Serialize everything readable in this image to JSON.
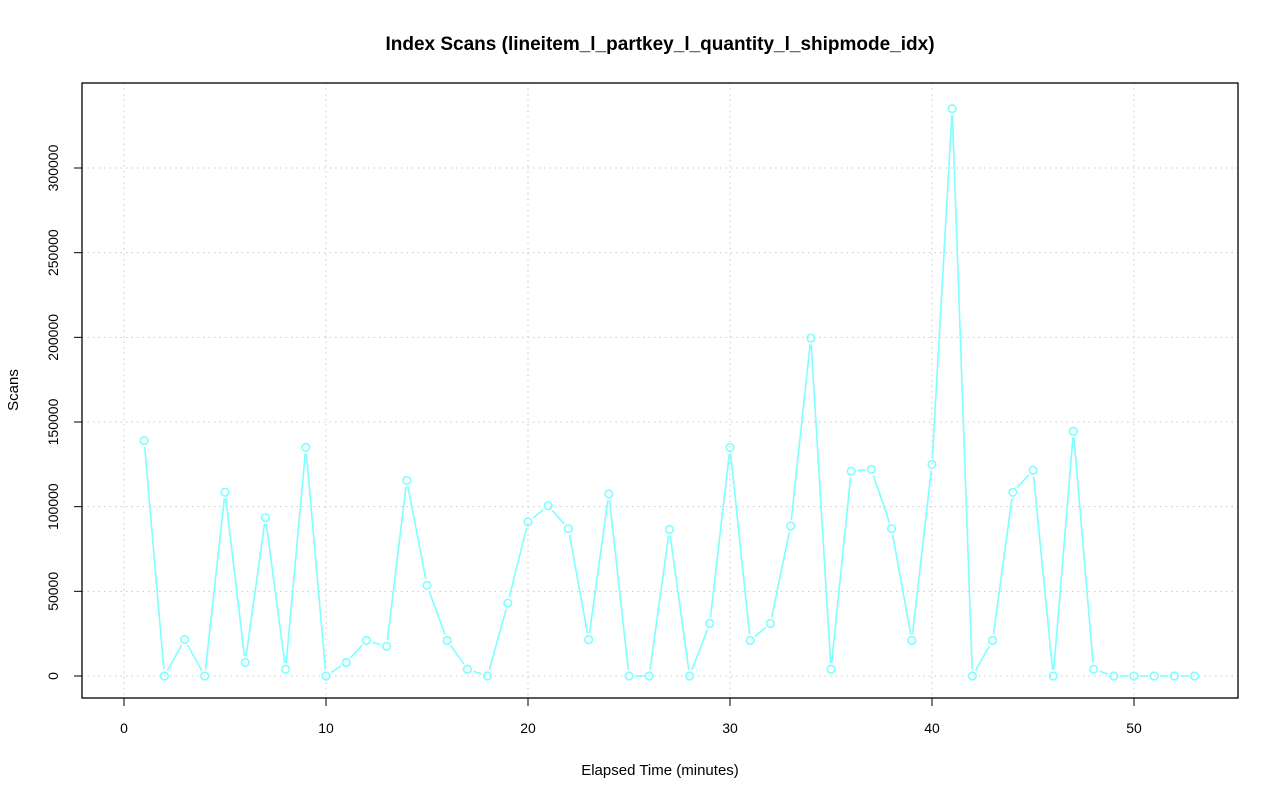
{
  "chart_data": {
    "type": "line",
    "title": "Index Scans (lineitem_l_partkey_l_quantity_l_shipmode_idx)",
    "xlabel": "Elapsed Time (minutes)",
    "ylabel": "Scans",
    "xlim": [
      0,
      55
    ],
    "ylim": [
      0,
      335000
    ],
    "x_ticks": [
      0,
      10,
      20,
      30,
      40,
      50
    ],
    "y_ticks": [
      0,
      50000,
      100000,
      150000,
      200000,
      250000,
      300000
    ],
    "grid": true,
    "line_color": "#7fffff",
    "series": [
      {
        "x": [
          1,
          2,
          3,
          4,
          5,
          6,
          7,
          8,
          9,
          10,
          11,
          12,
          13,
          14,
          15,
          16,
          17,
          18,
          19,
          20,
          21,
          22,
          23,
          24,
          25,
          26,
          27,
          28,
          29,
          30,
          31,
          32,
          33,
          34,
          35,
          36,
          37,
          38,
          39,
          40,
          41,
          42,
          43,
          44,
          45,
          46,
          47,
          48,
          49,
          50,
          51,
          52,
          53
        ],
        "y": [
          139000,
          0,
          21500,
          0,
          108500,
          8000,
          93500,
          4000,
          135000,
          0,
          8000,
          21000,
          17500,
          115500,
          53500,
          21000,
          4000,
          0,
          43000,
          91000,
          100500,
          87000,
          21500,
          107500,
          0,
          0,
          86500,
          0,
          31000,
          135000,
          21000,
          31000,
          88500,
          199500,
          4000,
          121000,
          122000,
          87000,
          21000,
          125000,
          335000,
          0,
          21000,
          108500,
          121500,
          0,
          144500,
          4000,
          0,
          0,
          0,
          0,
          0
        ]
      }
    ]
  }
}
